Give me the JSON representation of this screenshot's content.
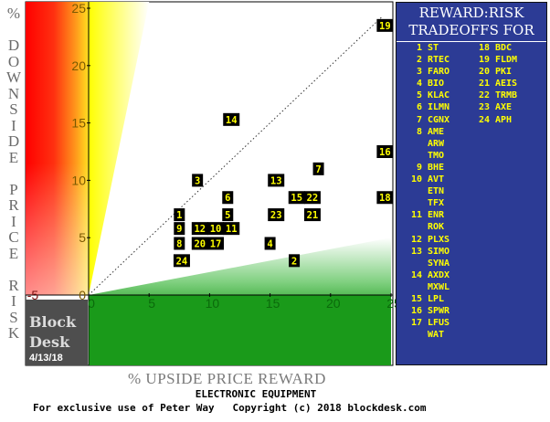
{
  "chart_data": {
    "type": "scatter",
    "title": "REWARD:RISK TRADEOFFS FOR",
    "subtitle": "ELECTRONIC EQUIPMENT",
    "xlabel": "% UPSIDE PRICE REWARD",
    "ylabel": "% DOWNSIDE PRICE RISK",
    "xlim": [
      -5,
      25
    ],
    "ylim": [
      -5,
      25
    ],
    "xticks": [
      "-5",
      "0",
      "5",
      "10",
      "15",
      "20",
      "25"
    ],
    "yticks": [
      "-5",
      "0",
      "5",
      "10",
      "15",
      "20",
      "25"
    ],
    "reference_line": "x = y",
    "points": [
      {
        "id": "1",
        "x": 7.5,
        "y": 7.0
      },
      {
        "id": "2",
        "x": 17.0,
        "y": 3.0
      },
      {
        "id": "3",
        "x": 9.0,
        "y": 10.0
      },
      {
        "id": "4",
        "x": 15.0,
        "y": 4.5
      },
      {
        "id": "5",
        "x": 11.5,
        "y": 7.0
      },
      {
        "id": "6",
        "x": 11.5,
        "y": 8.5
      },
      {
        "id": "7",
        "x": 19.0,
        "y": 11.0
      },
      {
        "id": "8",
        "x": 7.5,
        "y": 4.5
      },
      {
        "id": "9",
        "x": 7.5,
        "y": 5.8
      },
      {
        "id": "10",
        "x": 10.5,
        "y": 5.8
      },
      {
        "id": "11",
        "x": 11.8,
        "y": 5.8
      },
      {
        "id": "12",
        "x": 9.2,
        "y": 5.8
      },
      {
        "id": "13",
        "x": 15.5,
        "y": 10.0
      },
      {
        "id": "14",
        "x": 11.8,
        "y": 15.3
      },
      {
        "id": "15",
        "x": 17.2,
        "y": 8.5
      },
      {
        "id": "16",
        "x": 24.5,
        "y": 12.5
      },
      {
        "id": "17",
        "x": 10.5,
        "y": 4.5
      },
      {
        "id": "18",
        "x": 24.5,
        "y": 8.5
      },
      {
        "id": "19",
        "x": 24.5,
        "y": 23.5
      },
      {
        "id": "20",
        "x": 9.2,
        "y": 4.5
      },
      {
        "id": "21",
        "x": 18.5,
        "y": 7.0
      },
      {
        "id": "22",
        "x": 18.5,
        "y": 8.5
      },
      {
        "id": "23",
        "x": 15.5,
        "y": 7.0
      },
      {
        "id": "24",
        "x": 7.7,
        "y": 3.0
      }
    ]
  },
  "legend": {
    "title_line1": "REWARD:RISK",
    "title_line2": "TRADEOFFS FOR",
    "left_column": [
      {
        "num": "1",
        "ticker": "ST"
      },
      {
        "num": "2",
        "ticker": "RTEC"
      },
      {
        "num": "3",
        "ticker": "FARO"
      },
      {
        "num": "4",
        "ticker": "BIO"
      },
      {
        "num": "5",
        "ticker": "KLAC"
      },
      {
        "num": "6",
        "ticker": "ILMN"
      },
      {
        "num": "7",
        "ticker": "CGNX"
      },
      {
        "num": "8",
        "ticker": "AME"
      },
      {
        "num": "",
        "ticker": "ARW"
      },
      {
        "num": "",
        "ticker": "TMO"
      },
      {
        "num": "9",
        "ticker": "BHE"
      },
      {
        "num": "10",
        "ticker": "AVT"
      },
      {
        "num": "",
        "ticker": "ETN"
      },
      {
        "num": "",
        "ticker": "TFX"
      },
      {
        "num": "11",
        "ticker": "ENR"
      },
      {
        "num": "",
        "ticker": "ROK"
      },
      {
        "num": "12",
        "ticker": "PLXS"
      },
      {
        "num": "13",
        "ticker": "SIMO"
      },
      {
        "num": "",
        "ticker": "SYNA"
      },
      {
        "num": "14",
        "ticker": "AXDX"
      },
      {
        "num": "",
        "ticker": "MXWL"
      },
      {
        "num": "15",
        "ticker": "LPL"
      },
      {
        "num": "16",
        "ticker": "SPWR"
      },
      {
        "num": "17",
        "ticker": "LFUS"
      },
      {
        "num": "",
        "ticker": "WAT"
      }
    ],
    "right_column": [
      {
        "num": "18",
        "ticker": "BDC"
      },
      {
        "num": "19",
        "ticker": "FLDM"
      },
      {
        "num": "20",
        "ticker": "PKI"
      },
      {
        "num": "21",
        "ticker": "AEIS"
      },
      {
        "num": "22",
        "ticker": "TRMB"
      },
      {
        "num": "23",
        "ticker": "AXE"
      },
      {
        "num": "24",
        "ticker": "APH"
      }
    ]
  },
  "ylabel_letters": [
    "%",
    "",
    "D",
    "O",
    "W",
    "N",
    "S",
    "I",
    "D",
    "E",
    "",
    "P",
    "R",
    "I",
    "C",
    "E",
    "",
    "R",
    "I",
    "S",
    "K"
  ],
  "logo": {
    "line1": "Block",
    "line2": "Desk",
    "date": "4/13/18"
  },
  "footer": {
    "copyright": "For exclusive use of Peter Way   Copyright (c) 2018 blockdesk.com"
  },
  "colors": {
    "legend_bg": "#2c3b95",
    "legend_text": "#ffff00",
    "marker_bg": "#000000",
    "marker_text": "#ffff00",
    "risk_zone": "#ff0000",
    "caution_zone": "#ffff00",
    "reward_zone": "#1a9a1a",
    "logo_bg": "#4e4e4e"
  }
}
